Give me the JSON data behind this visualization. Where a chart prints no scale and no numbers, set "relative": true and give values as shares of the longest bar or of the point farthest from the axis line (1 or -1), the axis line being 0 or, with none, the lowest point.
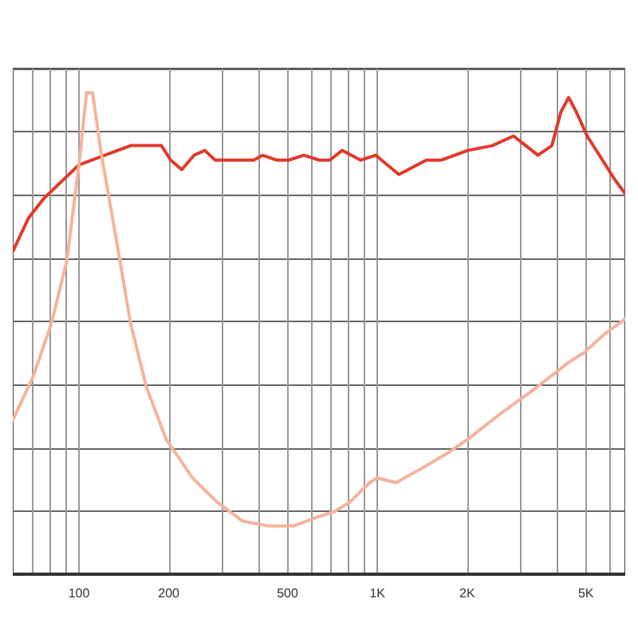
{
  "chart_data": {
    "type": "line",
    "relative": true,
    "log": "x",
    "grid": true,
    "marker": "none",
    "line_style": "solid",
    "xlim": [
      60,
      6770
    ],
    "xticks": [
      {
        "value": 70,
        "label": null
      },
      {
        "value": 80,
        "label": null
      },
      {
        "value": 90,
        "label": null
      },
      100,
      200,
      {
        "value": 300,
        "label": null
      },
      {
        "value": 400,
        "label": null
      },
      500,
      {
        "value": 600,
        "label": null
      },
      {
        "value": 700,
        "label": null
      },
      {
        "value": 800,
        "label": null
      },
      {
        "value": 900,
        "label": null
      },
      {
        "value": 1000,
        "label": "1K"
      },
      {
        "value": 2000,
        "label": "2K"
      },
      {
        "value": 3000,
        "label": null
      },
      {
        "value": 4000,
        "label": null
      },
      {
        "value": 5000,
        "label": "5K"
      },
      {
        "value": 6000,
        "label": null
      }
    ],
    "series": [
      {
        "color": "#e03a2a",
        "x": [
          60,
          67.8,
          76.2,
          88.9,
          100,
          122,
          149,
          174,
          189,
          203,
          221,
          243,
          264,
          286,
          307,
          354,
          385,
          412,
          459,
          505,
          567,
          638,
          693,
          762,
          879,
          988,
          1180,
          1459,
          1641,
          2009,
          2427,
          2860,
          3143,
          3451,
          3843,
          4121,
          4375,
          4642,
          5045,
          5546,
          6237,
          6770
        ],
        "values": [
          0.67,
          0.74,
          0.78,
          0.82,
          0.85,
          0.87,
          0.89,
          0.89,
          0.89,
          0.86,
          0.84,
          0.87,
          0.88,
          0.86,
          0.86,
          0.86,
          0.86,
          0.87,
          0.86,
          0.86,
          0.87,
          0.86,
          0.86,
          0.88,
          0.86,
          0.87,
          0.83,
          0.86,
          0.86,
          0.88,
          0.89,
          0.91,
          0.89,
          0.87,
          0.89,
          0.96,
          0.99,
          0.96,
          0.91,
          0.87,
          0.82,
          0.79
        ]
      },
      {
        "color": "#f5b39b",
        "x": [
          60,
          70.2,
          80.8,
          91,
          100,
          106,
          111,
          119,
          133,
          149,
          168,
          196,
          240,
          290,
          354,
          432,
          523,
          638,
          718,
          809,
          942,
          1000,
          1153,
          1409,
          1702,
          2009,
          2542,
          2963,
          3451,
          4375,
          4922,
          5808,
          6770
        ],
        "values": [
          0.32,
          0.41,
          0.52,
          0.65,
          0.85,
          1,
          1,
          0.87,
          0.7,
          0.52,
          0.39,
          0.28,
          0.2,
          0.15,
          0.11,
          0.1,
          0.1,
          0.12,
          0.13,
          0.15,
          0.19,
          0.2,
          0.19,
          0.22,
          0.25,
          0.28,
          0.33,
          0.36,
          0.39,
          0.44,
          0.46,
          0.5,
          0.53
        ]
      }
    ]
  }
}
